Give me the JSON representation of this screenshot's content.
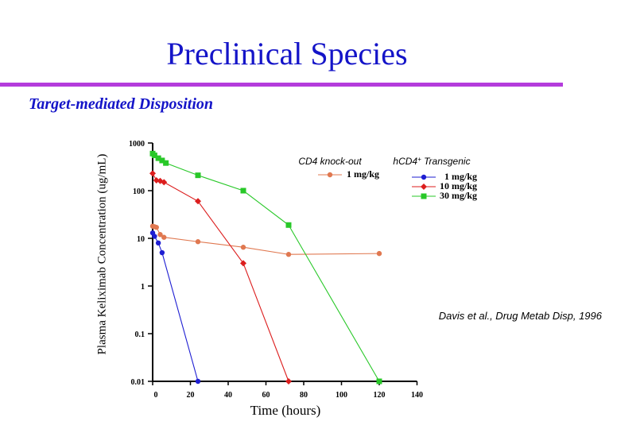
{
  "slide": {
    "title": "Preclinical Species",
    "subtitle": "Target-mediated Disposition"
  },
  "chart_data": {
    "type": "line",
    "title": "Preclinical Species",
    "subtitle": "Target-mediated Disposition",
    "xlabel": "Time (hours)",
    "ylabel": "Plasma Keliximab Concentration (ug/mL)",
    "xlim": [
      0,
      140
    ],
    "ylim": [
      0.01,
      1000
    ],
    "yscale": "log",
    "x_ticks": [
      "0",
      "20",
      "40",
      "60",
      "80",
      "100",
      "120",
      "140"
    ],
    "y_ticks": [
      "0.01",
      "0.1",
      "1",
      "10",
      "100",
      "1000"
    ],
    "legend_groups": [
      {
        "header": "CD4 knock-out",
        "entries": [
          "1 mg/kg"
        ]
      },
      {
        "header": "hCD4+ Transgenic",
        "header_parts": [
          "hCD4",
          "+",
          " Transgenic"
        ],
        "entries": [
          "1 mg/kg",
          "10 mg/kg",
          "30 mg/kg"
        ]
      }
    ],
    "annotation": "Davis et al., Drug Metab Disp, 1996",
    "series": [
      {
        "name": "CD4 knock-out 1 mg/kg",
        "color": "#e07850",
        "marker": "circle",
        "x": [
          0,
          1,
          2,
          4,
          6,
          24,
          48,
          72,
          120
        ],
        "y": [
          18,
          17.5,
          17,
          12,
          10.5,
          8.5,
          6.5,
          4.6,
          4.8
        ]
      },
      {
        "name": "hCD4+ Transgenic 1 mg/kg",
        "color": "#1e1ed2",
        "marker": "circle",
        "x": [
          0,
          1,
          3,
          5,
          24
        ],
        "y": [
          13,
          11,
          8,
          5,
          0.01
        ]
      },
      {
        "name": "hCD4+ Transgenic 10 mg/kg",
        "color": "#dc1e1e",
        "marker": "diamond",
        "x": [
          0,
          2,
          4,
          6,
          24,
          48,
          72
        ],
        "y": [
          230,
          165,
          160,
          150,
          60,
          3,
          0.01
        ]
      },
      {
        "name": "hCD4+ Transgenic 30 mg/kg",
        "color": "#28c828",
        "marker": "square",
        "x": [
          0,
          1,
          3,
          5,
          7,
          24,
          48,
          72,
          120
        ],
        "y": [
          600,
          550,
          480,
          430,
          380,
          210,
          100,
          19,
          0.01
        ]
      }
    ]
  }
}
